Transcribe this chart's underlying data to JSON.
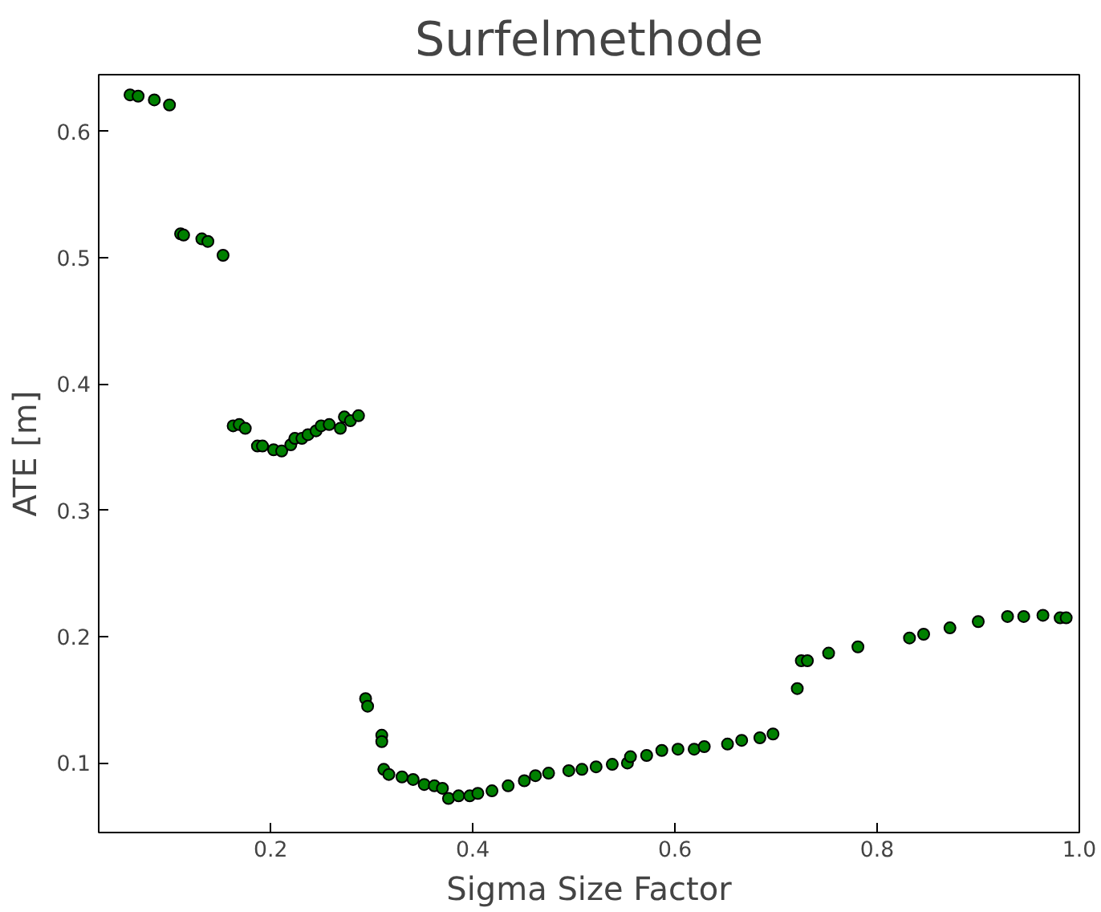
{
  "chart_data": {
    "type": "scatter",
    "title": "Surfelmethode",
    "xlabel": "Sigma Size Factor",
    "ylabel": "ATE [m]",
    "xlim": [
      0.03,
      1.0
    ],
    "ylim": [
      0.045,
      0.645
    ],
    "xticks": [
      0.2,
      0.4,
      0.6,
      0.8,
      {
        "value": 1.0,
        "label": "1.0"
      }
    ],
    "yticks": [
      0.1,
      0.2,
      0.3,
      0.4,
      0.5,
      0.6
    ],
    "grid": false,
    "marker": "circle",
    "series": [
      {
        "color": "#008000",
        "x": [
          0.061,
          0.069,
          0.085,
          0.1,
          0.111,
          0.114,
          0.132,
          0.138,
          0.153,
          0.163,
          0.169,
          0.175,
          0.187,
          0.192,
          0.203,
          0.211,
          0.22,
          0.224,
          0.231,
          0.237,
          0.245,
          0.25,
          0.258,
          0.269,
          0.273,
          0.279,
          0.287,
          0.294,
          0.296,
          0.31,
          0.31,
          0.312,
          0.317,
          0.33,
          0.341,
          0.352,
          0.362,
          0.37,
          0.376,
          0.386,
          0.397,
          0.405,
          0.419,
          0.435,
          0.451,
          0.462,
          0.475,
          0.495,
          0.508,
          0.522,
          0.538,
          0.553,
          0.556,
          0.572,
          0.587,
          0.603,
          0.619,
          0.629,
          0.652,
          0.666,
          0.684,
          0.697,
          0.721,
          0.725,
          0.731,
          0.752,
          0.781,
          0.832,
          0.846,
          0.872,
          0.9,
          0.929,
          0.945,
          0.964,
          0.981,
          0.987
        ],
        "values": [
          0.629,
          0.628,
          0.625,
          0.621,
          0.519,
          0.518,
          0.515,
          0.513,
          0.502,
          0.367,
          0.368,
          0.365,
          0.351,
          0.351,
          0.348,
          0.347,
          0.352,
          0.357,
          0.357,
          0.36,
          0.363,
          0.367,
          0.368,
          0.365,
          0.374,
          0.371,
          0.375,
          0.151,
          0.145,
          0.122,
          0.117,
          0.095,
          0.091,
          0.089,
          0.087,
          0.083,
          0.082,
          0.08,
          0.072,
          0.074,
          0.074,
          0.076,
          0.078,
          0.082,
          0.086,
          0.09,
          0.092,
          0.094,
          0.095,
          0.097,
          0.099,
          0.1,
          0.105,
          0.106,
          0.11,
          0.111,
          0.111,
          0.113,
          0.115,
          0.118,
          0.12,
          0.123,
          0.159,
          0.181,
          0.181,
          0.187,
          0.192,
          0.199,
          0.202,
          0.207,
          0.212,
          0.216,
          0.216,
          0.217,
          0.215,
          0.215
        ]
      }
    ]
  }
}
